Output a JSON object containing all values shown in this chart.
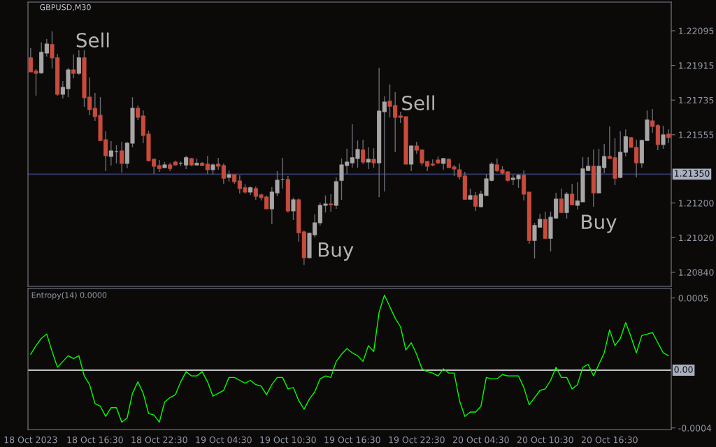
{
  "chart_data": [
    {
      "type": "candlestick",
      "title": "GBPUSD,M30",
      "categories": [
        null,
        null,
        null,
        null,
        null,
        null,
        null,
        null,
        null,
        null,
        null,
        null,
        null,
        null,
        null,
        null,
        null,
        null,
        null,
        null,
        null,
        null,
        null,
        null,
        null,
        null,
        null,
        null,
        null,
        null,
        null,
        null,
        null,
        null,
        null,
        null,
        null,
        null,
        null,
        null,
        null,
        null,
        null,
        null,
        null,
        null,
        null,
        null,
        null,
        null,
        null,
        null,
        null,
        null,
        null,
        null,
        null,
        null,
        null,
        null,
        null,
        null,
        null,
        null,
        null,
        null,
        null,
        null,
        null,
        null,
        null,
        null,
        null,
        null,
        null,
        null,
        null,
        null,
        null,
        null,
        null,
        null,
        null,
        null,
        null,
        null,
        null,
        null,
        null,
        null,
        null,
        null,
        null,
        null,
        null,
        null,
        null,
        null,
        null,
        null,
        null,
        null,
        null,
        null,
        null,
        null,
        null,
        null,
        null,
        null,
        null,
        null,
        null,
        null,
        null,
        null,
        null,
        null,
        null,
        null
      ],
      "ohlc": [
        [
          1.21954,
          1.22005,
          1.21881,
          1.21881
        ],
        [
          1.21885,
          1.21896,
          1.21758,
          1.21874
        ],
        [
          1.21877,
          1.22034,
          1.2187,
          1.21983
        ],
        [
          1.21979,
          1.22052,
          1.21961,
          1.22026
        ],
        [
          1.22023,
          1.22092,
          1.21899,
          1.21954
        ],
        [
          1.21954,
          1.21975,
          1.21758,
          1.21765
        ],
        [
          1.21765,
          1.21834,
          1.21743,
          1.21801
        ],
        [
          1.21794,
          1.21903,
          1.2175,
          1.21892
        ],
        [
          1.21892,
          1.21972,
          1.21848,
          1.21874
        ],
        [
          1.21874,
          1.21994,
          1.21867,
          1.21954
        ],
        [
          1.21954,
          1.21994,
          1.217,
          1.21747
        ],
        [
          1.2175,
          1.21852,
          1.21656,
          1.21685
        ],
        [
          1.21692,
          1.21772,
          1.21627,
          1.21649
        ],
        [
          1.21656,
          1.2175,
          1.21525,
          1.21525
        ],
        [
          1.21529,
          1.21573,
          1.21366,
          1.21446
        ],
        [
          1.21442,
          1.21522,
          1.21395,
          1.21471
        ],
        [
          1.21467,
          1.215,
          1.21406,
          1.21467
        ],
        [
          1.21471,
          1.21518,
          1.21358,
          1.21406
        ],
        [
          1.21406,
          1.21518,
          1.2138,
          1.21511
        ],
        [
          1.21511,
          1.2175,
          1.21489,
          1.21692
        ],
        [
          1.21692,
          1.21707,
          1.21631,
          1.21645
        ],
        [
          1.21652,
          1.21681,
          1.21511,
          1.21551
        ],
        [
          1.21558,
          1.21576,
          1.21416,
          1.2142
        ],
        [
          1.21427,
          1.21431,
          1.21351,
          1.21391
        ],
        [
          1.21395,
          1.21424,
          1.21362,
          1.2138
        ],
        [
          1.21384,
          1.21413,
          1.2138,
          1.21398
        ],
        [
          1.21398,
          1.21409,
          1.21366,
          1.2138
        ],
        [
          1.21413,
          1.2142,
          1.21395,
          1.21398
        ],
        [
          1.21406,
          1.21416,
          1.21391,
          1.21406
        ],
        [
          1.21398,
          1.21446,
          1.21377,
          1.21435
        ],
        [
          1.21431,
          1.21435,
          1.21391,
          1.21398
        ],
        [
          1.21398,
          1.21431,
          1.21395,
          1.21406
        ],
        [
          1.21406,
          1.21413,
          1.21391,
          1.21395
        ],
        [
          1.21402,
          1.21446,
          1.21351,
          1.21373
        ],
        [
          1.21373,
          1.21406,
          1.21347,
          1.21398
        ],
        [
          1.21402,
          1.21435,
          1.21373,
          1.21391
        ],
        [
          1.21395,
          1.21406,
          1.213,
          1.21329
        ],
        [
          1.21333,
          1.21369,
          1.21311,
          1.21347
        ],
        [
          1.21347,
          1.21347,
          1.213,
          1.21311
        ],
        [
          1.21315,
          1.21344,
          1.21249,
          1.21275
        ],
        [
          1.21279,
          1.21297,
          1.21249,
          1.21257
        ],
        [
          1.21257,
          1.21286,
          1.21242,
          1.21279
        ],
        [
          1.21275,
          1.21286,
          1.21217,
          1.21235
        ],
        [
          1.21242,
          1.21249,
          1.21213,
          1.21228
        ],
        [
          1.21231,
          1.21239,
          1.2117,
          1.2117
        ],
        [
          1.2117,
          1.21282,
          1.2109,
          1.21257
        ],
        [
          1.21253,
          1.21366,
          1.21235,
          1.21318
        ],
        [
          1.21322,
          1.21435,
          1.21275,
          1.21322
        ],
        [
          1.21322,
          1.2134,
          1.21151,
          1.21159
        ],
        [
          1.21159,
          1.21228,
          1.21112,
          1.21217
        ],
        [
          1.21217,
          1.21224,
          1.20999,
          1.21046
        ],
        [
          1.2105,
          1.21057,
          1.20879,
          1.20916
        ],
        [
          1.20916,
          1.21046,
          1.20912,
          1.21043
        ],
        [
          1.21035,
          1.21141,
          1.21021,
          1.21097
        ],
        [
          1.21097,
          1.21202,
          1.21083,
          1.21188
        ],
        [
          1.21188,
          1.21239,
          1.21151,
          1.21195
        ],
        [
          1.21195,
          1.21246,
          1.21155,
          1.21191
        ],
        [
          1.21188,
          1.21333,
          1.2117,
          1.21311
        ],
        [
          1.21318,
          1.21431,
          1.21217,
          1.21398
        ],
        [
          1.21395,
          1.21482,
          1.21351,
          1.21413
        ],
        [
          1.21409,
          1.21609,
          1.21384,
          1.21435
        ],
        [
          1.21431,
          1.21525,
          1.21384,
          1.21478
        ],
        [
          1.21475,
          1.21529,
          1.21402,
          1.21413
        ],
        [
          1.21413,
          1.21489,
          1.21377,
          1.21427
        ],
        [
          1.21427,
          1.21485,
          1.21384,
          1.21409
        ],
        [
          1.21409,
          1.21903,
          1.21231,
          1.21678
        ],
        [
          1.21674,
          1.21754,
          1.2126,
          1.21725
        ],
        [
          1.21729,
          1.21816,
          1.21645,
          1.21703
        ],
        [
          1.21707,
          1.21776,
          1.21464,
          1.21645
        ],
        [
          1.21652,
          1.21674,
          1.21616,
          1.21645
        ],
        [
          1.21649,
          1.21649,
          1.21402,
          1.21402
        ],
        [
          1.21402,
          1.215,
          1.21366,
          1.21496
        ],
        [
          1.21496,
          1.21518,
          1.21456,
          1.21475
        ],
        [
          1.21475,
          1.21478,
          1.21395,
          1.21409
        ],
        [
          1.21416,
          1.21416,
          1.21366,
          1.21391
        ],
        [
          1.21402,
          1.21427,
          1.21391,
          1.21398
        ],
        [
          1.21424,
          1.21442,
          1.21402,
          1.21409
        ],
        [
          1.21406,
          1.21435,
          1.21373,
          1.21431
        ],
        [
          1.21427,
          1.21431,
          1.21384,
          1.21384
        ],
        [
          1.21387,
          1.21398,
          1.2134,
          1.21377
        ],
        [
          1.21373,
          1.21406,
          1.21322,
          1.21337
        ],
        [
          1.2134,
          1.21362,
          1.21217,
          1.2122
        ],
        [
          1.2122,
          1.21275,
          1.2122,
          1.21239
        ],
        [
          1.21239,
          1.21257,
          1.21159,
          1.21184
        ],
        [
          1.21181,
          1.21264,
          1.21177,
          1.21246
        ],
        [
          1.21239,
          1.21351,
          1.21239,
          1.21326
        ],
        [
          1.21318,
          1.21413,
          1.21311,
          1.21402
        ],
        [
          1.21398,
          1.21431,
          1.21362,
          1.21369
        ],
        [
          1.21373,
          1.21391,
          1.21347,
          1.21355
        ],
        [
          1.21362,
          1.21366,
          1.21311,
          1.21318
        ],
        [
          1.21322,
          1.21347,
          1.21293,
          1.21329
        ],
        [
          1.21326,
          1.21351,
          1.21279,
          1.21344
        ],
        [
          1.21344,
          1.21369,
          1.21213,
          1.21246
        ],
        [
          1.21257,
          1.21257,
          1.20988,
          1.21006
        ],
        [
          1.21006,
          1.21097,
          1.20912,
          1.21083
        ],
        [
          1.21075,
          1.21144,
          1.21075,
          1.21115
        ],
        [
          1.21115,
          1.21155,
          1.21014,
          1.21017
        ],
        [
          1.21017,
          1.21155,
          1.20948,
          1.21126
        ],
        [
          1.21122,
          1.21253,
          1.21122,
          1.2122
        ],
        [
          1.2122,
          1.21275,
          1.21151,
          1.21151
        ],
        [
          1.21151,
          1.21257,
          1.21119,
          1.21246
        ],
        [
          1.21246,
          1.213,
          1.21188,
          1.21191
        ],
        [
          1.21188,
          1.21308,
          1.21166,
          1.2121
        ],
        [
          1.21206,
          1.21438,
          1.21206,
          1.21377
        ],
        [
          1.21369,
          1.21438,
          1.21369,
          1.21391
        ],
        [
          1.21391,
          1.21478,
          1.21181,
          1.21253
        ],
        [
          1.21253,
          1.21482,
          1.21253,
          1.21391
        ],
        [
          1.21384,
          1.21507,
          1.21355,
          1.21442
        ],
        [
          1.21442,
          1.21598,
          1.21431,
          1.21431
        ],
        [
          1.21435,
          1.21536,
          1.21293,
          1.21329
        ],
        [
          1.21333,
          1.21573,
          1.21329,
          1.21464
        ],
        [
          1.21464,
          1.21583,
          1.21442,
          1.21544
        ],
        [
          1.2154,
          1.21544,
          1.21489,
          1.21489
        ],
        [
          1.21489,
          1.21529,
          1.21333,
          1.21409
        ],
        [
          1.21409,
          1.21529,
          1.21384,
          1.21525
        ],
        [
          1.21525,
          1.21681,
          1.21525,
          1.21631
        ],
        [
          1.21627,
          1.21689,
          1.21565,
          1.21598
        ],
        [
          1.21602,
          1.21609,
          1.21475,
          1.21504
        ],
        [
          1.21504,
          1.21602,
          1.21482,
          1.21554
        ],
        [
          1.21558,
          1.21583,
          1.21511,
          1.2154
        ]
      ],
      "colors": [
        "#c84b3c",
        "#c84b3c",
        "#a6a6a6",
        "#a6a6a6",
        "#c84b3c",
        "#c84b3c",
        "#a6a6a6",
        "#a6a6a6",
        "#c84b3c",
        "#a6a6a6",
        "#c84b3c",
        "#c84b3c",
        "#c84b3c",
        "#c84b3c",
        "#c84b3c",
        "#a6a6a6",
        "#a6a6a6",
        "#c84b3c",
        "#a6a6a6",
        "#a6a6a6",
        "#c84b3c",
        "#c84b3c",
        "#c84b3c",
        "#c84b3c",
        "#c84b3c",
        "#a6a6a6",
        "#c84b3c",
        "#c84b3c",
        "#a6a6a6",
        "#a6a6a6",
        "#c84b3c",
        "#a6a6a6",
        "#c84b3c",
        "#c84b3c",
        "#a6a6a6",
        "#c84b3c",
        "#c84b3c",
        "#a6a6a6",
        "#c84b3c",
        "#c84b3c",
        "#c84b3c",
        "#a6a6a6",
        "#c84b3c",
        "#c84b3c",
        "#c84b3c",
        "#a6a6a6",
        "#a6a6a6",
        "#a6a6a6",
        "#c84b3c",
        "#a6a6a6",
        "#c84b3c",
        "#c84b3c",
        "#a6a6a6",
        "#a6a6a6",
        "#a6a6a6",
        "#a6a6a6",
        "#c84b3c",
        "#a6a6a6",
        "#a6a6a6",
        "#a6a6a6",
        "#a6a6a6",
        "#a6a6a6",
        "#c84b3c",
        "#a6a6a6",
        "#c84b3c",
        "#a6a6a6",
        "#a6a6a6",
        "#c84b3c",
        "#c84b3c",
        "#c84b3c",
        "#c84b3c",
        "#a6a6a6",
        "#c84b3c",
        "#c84b3c",
        "#c84b3c",
        "#c84b3c",
        "#c84b3c",
        "#a6a6a6",
        "#c84b3c",
        "#c84b3c",
        "#c84b3c",
        "#c84b3c",
        "#a6a6a6",
        "#c84b3c",
        "#a6a6a6",
        "#a6a6a6",
        "#a6a6a6",
        "#c84b3c",
        "#c84b3c",
        "#c84b3c",
        "#a6a6a6",
        "#a6a6a6",
        "#c84b3c",
        "#c84b3c",
        "#a6a6a6",
        "#a6a6a6",
        "#c84b3c",
        "#a6a6a6",
        "#a6a6a6",
        "#c84b3c",
        "#a6a6a6",
        "#c84b3c",
        "#a6a6a6",
        "#a6a6a6",
        "#a6a6a6",
        "#c84b3c",
        "#a6a6a6",
        "#a6a6a6",
        "#c84b3c",
        "#c84b3c",
        "#a6a6a6",
        "#a6a6a6",
        "#c84b3c",
        "#c84b3c",
        "#a6a6a6",
        "#a6a6a6",
        "#c84b3c",
        "#c84b3c",
        "#a6a6a6",
        "#c84b3c"
      ],
      "ylim": [
        1.20767,
        1.22244
      ],
      "yticks": [
        {
          "value": 1.2084,
          "label": "1.20840"
        },
        {
          "value": 1.2102,
          "label": "1.21020"
        },
        {
          "value": 1.212,
          "label": "1.21200"
        },
        1.21555,
        1.21735,
        1.21915,
        1.22095
      ],
      "tick_labels": "y",
      "ref_lines": [
        {
          "axis": "y",
          "value": 1.2135,
          "label": "1.21350",
          "color": "#353c6e"
        }
      ],
      "annotations": [
        "Sell",
        "Buy",
        "Sell",
        "Buy"
      ]
    },
    {
      "type": "line",
      "categories": [
        "18 Oct 2023",
        null,
        null,
        null,
        null,
        null,
        null,
        null,
        null,
        null,
        null,
        null,
        "18 Oct 16:30",
        null,
        null,
        null,
        null,
        null,
        null,
        null,
        null,
        null,
        null,
        null,
        "18 Oct 22:30",
        null,
        null,
        null,
        null,
        null,
        null,
        null,
        null,
        null,
        null,
        null,
        "19 Oct 04:30",
        null,
        null,
        null,
        null,
        null,
        null,
        null,
        null,
        null,
        null,
        null,
        "19 Oct 10:30",
        null,
        null,
        null,
        null,
        null,
        null,
        null,
        null,
        null,
        null,
        null,
        "19 Oct 16:30",
        null,
        null,
        null,
        null,
        null,
        null,
        null,
        null,
        null,
        null,
        null,
        "19 Oct 22:30",
        null,
        null,
        null,
        null,
        null,
        null,
        null,
        null,
        null,
        null,
        null,
        "20 Oct 04:30",
        null,
        null,
        null,
        null,
        null,
        null,
        null,
        null,
        null,
        null,
        null,
        "20 Oct 10:30",
        null,
        null,
        null,
        null,
        null,
        null,
        null,
        null,
        null,
        null,
        null,
        "20 Oct 16:30",
        null,
        null,
        null,
        null,
        null,
        null,
        null,
        null,
        null,
        null,
        null
      ],
      "series": [
        {
          "color": "#00ff00",
          "values": [
            0.00011,
            0.00017,
            0.00022,
            0.00025,
            0.00013,
            2e-05,
            6e-05,
            0.0001,
            8e-05,
            0.0001,
            -4e-05,
            -0.0001,
            -0.00023,
            -0.00025,
            -0.00032,
            -0.00026,
            -0.00026,
            -0.00036,
            -0.00033,
            -0.00016,
            -8e-05,
            -0.00016,
            -0.0003,
            -0.00031,
            -0.00036,
            -0.00022,
            -0.00019,
            -0.00017,
            -8e-05,
            -1e-05,
            -4e-05,
            -4e-05,
            -1e-05,
            -8e-05,
            -0.00018,
            -0.00016,
            -0.00014,
            -5e-05,
            -5e-05,
            -7e-05,
            -9e-05,
            -7e-05,
            -0.0001,
            -0.00011,
            -0.00017,
            -0.0001,
            -5e-05,
            -5e-05,
            -0.00013,
            -0.00012,
            -0.00021,
            -0.00027,
            -0.0002,
            -0.00015,
            -6e-05,
            -4e-05,
            -5e-05,
            6e-05,
            0.00011,
            0.00015,
            0.00012,
            0.0001,
            6e-05,
            0.00017,
            0.00013,
            0.0004,
            0.00052,
            0.00044,
            0.00036,
            0.0003,
            0.00014,
            0.00019,
            0.00011,
            1e-05,
            -1e-05,
            -2e-05,
            -4e-05,
            1e-05,
            -2e-05,
            -2e-05,
            -0.00021,
            -0.00032,
            -0.00029,
            -0.00029,
            -0.00025,
            -5e-05,
            -6e-05,
            -6e-05,
            -3e-05,
            -4e-05,
            -4e-05,
            -4e-05,
            -0.00012,
            -0.00024,
            -0.00019,
            -0.00014,
            -0.00013,
            -7e-05,
            2e-05,
            -5e-05,
            -5e-05,
            -0.00013,
            -0.0001,
            2e-05,
            4e-05,
            -4e-05,
            4e-05,
            0.00012,
            0.00028,
            0.00017,
            0.00022,
            0.00033,
            0.00023,
            0.00012,
            0.00024,
            0.00025,
            0.00026,
            0.00019,
            0.00012,
            0.0001
          ]
        }
      ],
      "ylim": [
        -0.000411,
        0.000566
      ],
      "yticks": [
        -0.0004,
        0.0005
      ],
      "ref_lines": [
        {
          "axis": "y",
          "value": 0,
          "label": "0.00",
          "color": "#ffffff"
        }
      ],
      "annotations": [
        "Entropy(14) 0.0000"
      ]
    }
  ]
}
